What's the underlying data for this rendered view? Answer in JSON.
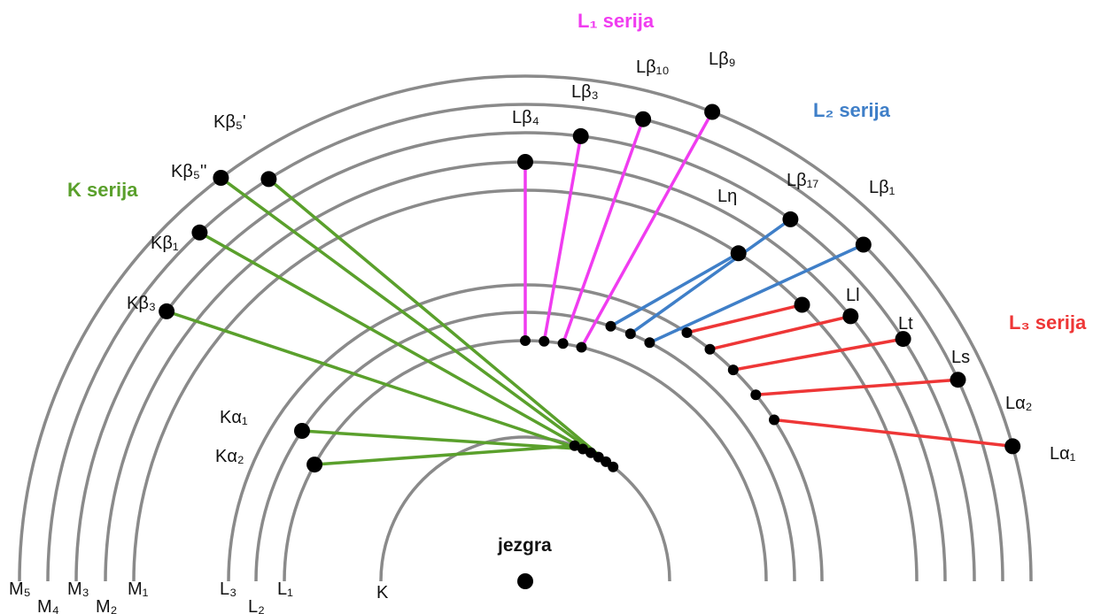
{
  "series": {
    "k": {
      "label": "K serija",
      "color": "#5aa02c"
    },
    "l1": {
      "label": "L₁ serija",
      "color": "#f03cf0"
    },
    "l2": {
      "label": "L₂ serija",
      "color": "#3f7fc8"
    },
    "l3": {
      "label": "L₃ serija",
      "color": "#ee3636"
    }
  },
  "shell_labels": {
    "m5": "M₅",
    "m4": "M₄",
    "m3": "M₃",
    "m2": "M₂",
    "m1": "M₁",
    "l3": "L₃",
    "l2": "L₂",
    "l1": "L₁",
    "k": "K"
  },
  "nucleus_label": "jezgra",
  "transitions": {
    "kb5p": "Kβ₅'",
    "kb5pp": "Kβ₅''",
    "kb1": "Kβ₁",
    "kb3": "Kβ₃",
    "ka1": "Kα₁",
    "ka2": "Kα₂",
    "lb4": "Lβ₄",
    "lb3": "Lβ₃",
    "lb10": "Lβ₁₀",
    "lb9": "Lβ₉",
    "leta": "Lη",
    "lb17": "Lβ₁₇",
    "lb1": "Lβ₁",
    "ll": "Ll",
    "lt": "Lt",
    "ls": "Ls",
    "la2": "Lα₂",
    "la1": "Lα₁"
  }
}
